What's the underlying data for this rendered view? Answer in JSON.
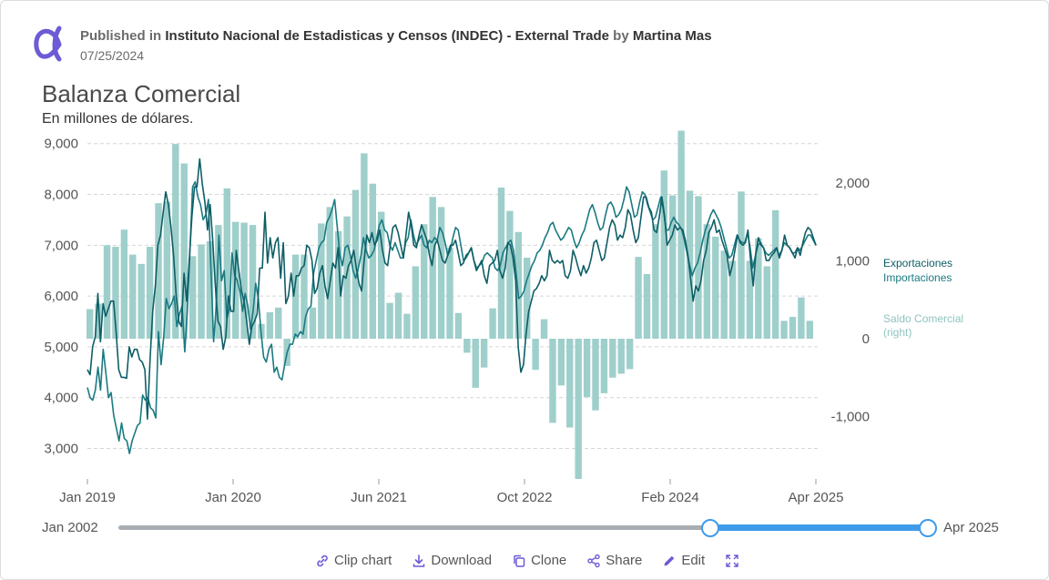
{
  "header": {
    "published_prefix": "Published in",
    "source": "Instituto Nacional de Estadisticas y Censos (INDEC) - External Trade",
    "by": "by",
    "author": "Martina Mas",
    "date": "07/25/2024"
  },
  "chart_data": {
    "type": "line",
    "title": "Balanza Comercial",
    "subtitle": "En millones de dólares.",
    "x_ticks": [
      "Jan 2019",
      "Jan 2020",
      "Jun 2021",
      "Oct 2022",
      "Feb 2024",
      "Apr 2025"
    ],
    "y_left": {
      "ticks": [
        3000,
        4000,
        5000,
        6000,
        7000,
        8000,
        9000
      ],
      "range": [
        2400,
        9300
      ]
    },
    "y_right": {
      "ticks": [
        -1000,
        0,
        1000,
        2000
      ],
      "range": [
        -1800,
        2700
      ]
    },
    "grid": true,
    "legend_placement": "right",
    "series": [
      {
        "name": "Exportaciones",
        "axis": "left",
        "render": "line",
        "color": "#0e5e66",
        "values": [
          4550,
          4450,
          5000,
          5200,
          6050,
          5100,
          5850,
          5600,
          5750,
          5900,
          5900,
          5300,
          4550,
          4400,
          4400,
          4380,
          5000,
          4800,
          4950,
          4950,
          4750,
          4700,
          4550,
          3580,
          4750,
          5700,
          6200,
          7000,
          7200,
          7650,
          8050,
          7800,
          7350,
          6800,
          6000,
          5500,
          5400,
          6450,
          5900,
          6700,
          7550,
          8150,
          8150,
          8700,
          8200,
          7850,
          7300,
          7800,
          7100,
          6200,
          5500,
          5400,
          4950,
          5200,
          6000,
          5700,
          5700,
          6900,
          6500,
          6100,
          5900,
          5500,
          5050,
          5400,
          5500,
          5650,
          6550,
          6550,
          7650,
          6650,
          7150,
          6750,
          7050,
          7150,
          6350,
          7050,
          5850,
          6000,
          6450,
          6000,
          6400,
          6400,
          6550,
          6600,
          7000,
          6950,
          6700,
          6050,
          6150,
          6450,
          6600,
          6200,
          5950,
          6300,
          6650,
          6550,
          6950,
          6000,
          6400,
          6350,
          6600,
          6700,
          6900,
          6550,
          6250,
          6100,
          6700,
          7200,
          7050,
          7250,
          7000,
          7100,
          7300,
          6900,
          6650,
          6600,
          7000,
          7350,
          7400,
          7250,
          7000,
          6750,
          7200,
          7650,
          7400,
          7000,
          6950,
          7200,
          7400,
          7250,
          7100,
          6800,
          6600,
          7000,
          7100,
          6900,
          6700,
          6650,
          6800,
          7000,
          7000,
          7100,
          6850,
          6600,
          6650,
          6800,
          6850,
          6950,
          6700,
          6500,
          6600,
          6700,
          6400,
          6250,
          6600,
          6650,
          6700,
          6900,
          6500,
          6350,
          6550,
          7050,
          7000,
          6750,
          6300,
          5000,
          4500,
          4650,
          5250,
          5700,
          5900,
          6100,
          6150,
          6250,
          6400,
          6300,
          6400,
          6900,
          6700,
          6650,
          6700,
          6650,
          6700,
          6400,
          6350,
          6500,
          6900,
          6750,
          6550,
          6400,
          6600,
          6450,
          6550,
          6750,
          7050,
          7100,
          6900,
          6700,
          6750,
          7050,
          7350,
          7500,
          7400,
          7100,
          7200,
          7150,
          7350,
          7700,
          7600,
          7300,
          7050,
          7150,
          7550,
          7950,
          7950,
          7750,
          7650,
          7300,
          7250,
          7550,
          7950,
          7600,
          7000,
          7100,
          7200,
          7400,
          7300,
          7350,
          7300,
          7100,
          6800,
          6350,
          5900,
          6200,
          6100,
          6300,
          6700,
          6900,
          7250,
          7350,
          7500,
          7250,
          7300,
          7100,
          6950,
          6800,
          6400,
          6600,
          6900,
          7200,
          7050,
          7000,
          7050,
          7300,
          6700,
          6200,
          6850,
          7150,
          7000,
          6950,
          6700,
          6700,
          6800,
          6850,
          6950,
          6750,
          6900,
          7200,
          7000,
          6950,
          6850,
          6750,
          6950,
          6800,
          7050,
          7250,
          7350,
          7300,
          7150,
          7000
        ]
      },
      {
        "name": "Importaciones",
        "axis": "left",
        "render": "line",
        "color": "#1a7a82",
        "values": [
          4200,
          4000,
          3950,
          4150,
          4600,
          4150,
          4950,
          4500,
          4000,
          4100,
          3650,
          3400,
          3150,
          3500,
          3200,
          3150,
          2900,
          3150,
          3300,
          3450,
          3500,
          4050,
          3950,
          4000,
          3800,
          3750,
          3600,
          5300,
          4650,
          5200,
          5950,
          5750,
          5850,
          6000,
          5400,
          5650,
          5800,
          4900,
          5700,
          6900,
          8150,
          8250,
          7950,
          7800,
          7500,
          7600,
          7900,
          6500,
          5100,
          5800,
          7200,
          6300,
          6500,
          5550,
          5750,
          6850,
          6400,
          6300,
          6100,
          5700,
          6050,
          5800,
          5350,
          5700,
          6250,
          5950,
          5300,
          4800,
          4700,
          4950,
          5050,
          4500,
          4600,
          4400,
          4350,
          4650,
          4900,
          5050,
          5050,
          5250,
          5200,
          5300,
          5250,
          5600,
          5750,
          5800,
          6450,
          6700,
          6950,
          7050,
          7100,
          7450,
          7550,
          7700,
          7900,
          7350,
          6800,
          6600,
          6950,
          7000,
          6800,
          6500,
          6350,
          6550,
          6800,
          7150,
          6900,
          6750,
          6800,
          6900,
          7150,
          7400,
          7500,
          7300,
          7250,
          7000,
          6900,
          7050,
          6900,
          6750,
          6750,
          7050,
          7150,
          7500,
          7200,
          7000,
          7100,
          7200,
          7000,
          6950,
          7100,
          7050,
          7150,
          7100,
          7350,
          7250,
          7050,
          6800,
          6900,
          7150,
          7350,
          7300,
          7000,
          6700,
          6750,
          6850,
          6950,
          6700,
          6550,
          6600,
          6650,
          6800,
          6850,
          6800,
          6750,
          6550,
          6500,
          6600,
          6850,
          6950,
          7050,
          7100,
          6900,
          6450,
          5950,
          6000,
          6100,
          6300,
          6450,
          6600,
          6700,
          6850,
          6900,
          7000,
          7150,
          7250,
          7400,
          7450,
          7300,
          7200,
          7100,
          7150,
          7250,
          7350,
          7300,
          7100,
          6950,
          7050,
          7200,
          7300,
          7500,
          7700,
          7800,
          7650,
          7450,
          7300,
          7350,
          7600,
          7800,
          7850,
          7750,
          7550,
          7600,
          7700,
          7900,
          8150,
          8050,
          7800,
          7550,
          7600,
          7850,
          8050,
          8000,
          7800,
          7650,
          7500,
          7550,
          7750,
          7950,
          7700,
          7300,
          7300,
          7450,
          7550,
          7450,
          7400,
          7300,
          7100,
          6850,
          6600,
          6400,
          6550,
          6650,
          6850,
          7100,
          7300,
          7450,
          7600,
          7700,
          7600,
          7500,
          7350,
          7150,
          6950,
          6750,
          6800,
          7000,
          7200,
          7100,
          7050,
          7050,
          7250,
          6950,
          6550,
          6800,
          7000,
          7050,
          6950,
          6850,
          6800,
          6850,
          6900,
          6950,
          6800,
          6900,
          7050,
          7000,
          6950,
          6850,
          6850,
          6950,
          6900,
          7000,
          7100,
          7200,
          7200,
          7100,
          7000
        ]
      },
      {
        "name": "Saldo Comercial (right)",
        "axis": "right",
        "render": "bar",
        "color": "#9fcfcb",
        "values": [
          380,
          450,
          1200,
          1180,
          1400,
          1080,
          960,
          1180,
          1740,
          1760,
          2500,
          2250,
          1060,
          1210,
          1250,
          1460,
          1930,
          1500,
          1490,
          1460,
          190,
          340,
          400,
          -350,
          1080,
          1080,
          400,
          1480,
          1690,
          1380,
          1570,
          1910,
          2380,
          1990,
          1630,
          460,
          590,
          320,
          930,
          1470,
          1820,
          1690,
          1170,
          330,
          -180,
          -630,
          -370,
          390,
          1940,
          1640,
          1370,
          1040,
          -400,
          250,
          -1080,
          -600,
          -1140,
          -1800,
          -750,
          -920,
          -700,
          -500,
          -450,
          -390,
          1050,
          830,
          1470,
          2160,
          1840,
          2670,
          1900,
          1830,
          1470,
          1310,
          1130,
          1000,
          1890,
          1000,
          1290,
          930,
          1650,
          230,
          280,
          530,
          230
        ]
      }
    ]
  },
  "slider": {
    "start_label": "Jan 2002",
    "end_label": "Apr 2025"
  },
  "toolbar": {
    "clip": "Clip chart",
    "download": "Download",
    "clone": "Clone",
    "share": "Share",
    "edit": "Edit"
  },
  "colors": {
    "accent": "#3e9bec",
    "logo": "#6b5bd6"
  }
}
